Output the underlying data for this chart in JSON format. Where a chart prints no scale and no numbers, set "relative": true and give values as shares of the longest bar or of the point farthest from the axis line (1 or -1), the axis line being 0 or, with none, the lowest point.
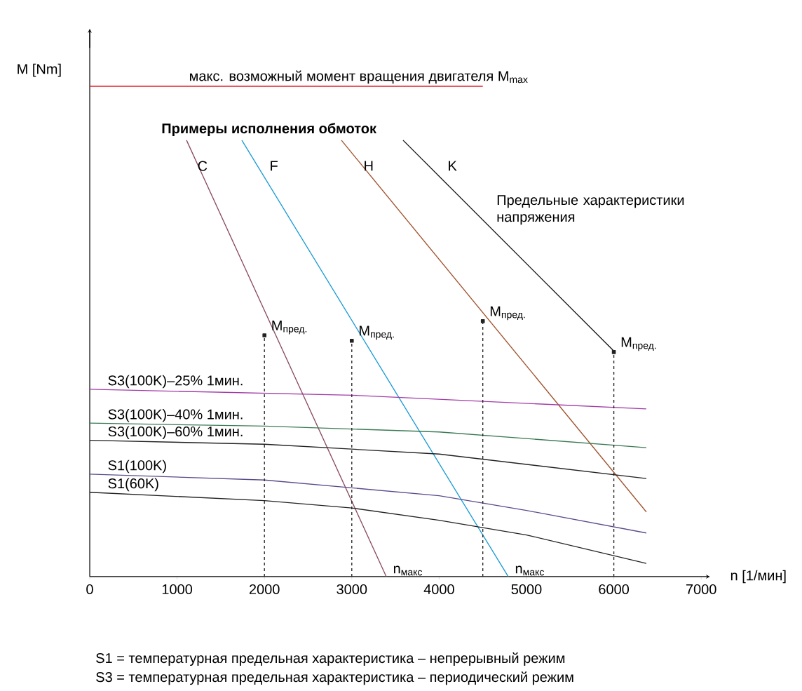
{
  "chart_data": {
    "type": "line",
    "relative": true,
    "xlabel": "n [1/мин]",
    "ylabel": "M [Nm]",
    "xlim": [
      0,
      7100
    ],
    "xticks": [
      0,
      1000,
      2000,
      3000,
      4000,
      5000,
      6000,
      7000
    ],
    "series": [
      {
        "name": "макс. возможный момент вращения двигателя M$_{max}$",
        "color": "#e0202a",
        "x": [
          0,
          4500
        ],
        "values": [
          1.0,
          1.0
        ]
      },
      {
        "name": "C",
        "color": "#8b4a5f",
        "x": [
          1108,
          3395
        ],
        "values": [
          0.89,
          0
        ]
      },
      {
        "name": "F",
        "color": "#1a9ad6",
        "x": [
          1741,
          4791
        ],
        "values": [
          0.89,
          0
        ]
      },
      {
        "name": "H",
        "color": "#a0522d",
        "x": [
          2881,
          6372
        ],
        "values": [
          0.89,
          0.132
        ]
      },
      {
        "name": "K",
        "color": "#111111",
        "x": [
          3587,
          5995
        ],
        "values": [
          0.89,
          0.461
        ]
      },
      {
        "name": "S3(100K)–25% 1мин.",
        "color": "#a23ca8",
        "x": [
          0,
          3000,
          6372
        ],
        "values": [
          0.382,
          0.37,
          0.342
        ]
      },
      {
        "name": "S3(100K)–40% 1мин.",
        "color": "#3b7a55",
        "x": [
          0,
          2000,
          4000,
          6372
        ],
        "values": [
          0.313,
          0.307,
          0.295,
          0.263
        ]
      },
      {
        "name": "S3(100K)–60% 1мин.",
        "color": "#222222",
        "x": [
          0,
          2000,
          4000,
          6372
        ],
        "values": [
          0.278,
          0.27,
          0.25,
          0.2
        ]
      },
      {
        "name": "S1(100K)",
        "color": "#5a4a8a",
        "x": [
          0,
          2000,
          4000,
          5000,
          6372
        ],
        "values": [
          0.209,
          0.197,
          0.165,
          0.135,
          0.089
        ]
      },
      {
        "name": "S1(60K)",
        "color": "#222222",
        "x": [
          0,
          2000,
          3000,
          4000,
          5000,
          6372
        ],
        "values": [
          0.172,
          0.155,
          0.14,
          0.115,
          0.085,
          0.027
        ]
      },
      {
        "type": "line",
        "line_style": "dashed",
        "color": "#222222",
        "x": [
          2000,
          2000
        ],
        "values": [
          0,
          0.492
        ]
      },
      {
        "type": "line",
        "line_style": "dashed",
        "color": "#222222",
        "x": [
          3000,
          3000
        ],
        "values": [
          0,
          0.481
        ]
      },
      {
        "type": "line",
        "line_style": "dashed",
        "color": "#222222",
        "x": [
          4500,
          4500
        ],
        "values": [
          0,
          0.521
        ]
      },
      {
        "type": "line",
        "line_style": "dashed",
        "color": "#222222",
        "x": [
          6000,
          6000
        ],
        "values": [
          0,
          0.458
        ]
      },
      {
        "type": "scatter",
        "marker": "square",
        "color": "#222222",
        "x": [
          2000,
          3000,
          4500,
          6000
        ],
        "values": [
          0.492,
          0.481,
          0.521,
          0.458
        ]
      }
    ],
    "annotations": [
      "Примеры исполнения обмоток",
      "Предельные характеристики напряжения",
      "S1 = температурная предельная характеристика – непрерывный режим",
      "S3 = температурная предельная характеристика  – периодический режим",
      {
        "text": "M$_{пред.}$",
        "x": 2000,
        "y": 0.492
      },
      {
        "text": "M$_{пред.}$",
        "x": 3000,
        "y": 0.481
      },
      {
        "text": "M$_{пред.}$",
        "x": 4500,
        "y": 0.521
      },
      {
        "text": "M$_{пред.}$",
        "x": 6000,
        "y": 0.458
      },
      {
        "text": "n$_{макс}$",
        "x": 3395,
        "y": 0
      },
      {
        "text": "n$_{макс}$",
        "x": 4791,
        "y": 0
      }
    ]
  }
}
